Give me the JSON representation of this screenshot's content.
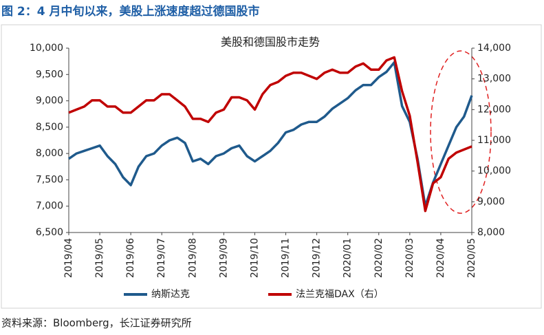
{
  "heading": "图 2：4 月中旬以来，美股上涨速度超过德国股市",
  "source": "资料来源：Bloomberg，长江证券研究所",
  "chart_data": {
    "type": "line",
    "title": "美股和德国股市走势",
    "categories": [
      "2019/04",
      null,
      null,
      null,
      "2019/05",
      null,
      null,
      null,
      "2019/06",
      null,
      null,
      null,
      "2019/07",
      null,
      null,
      null,
      "2019/08",
      null,
      null,
      null,
      "2019/09",
      null,
      null,
      null,
      "2019/10",
      null,
      null,
      null,
      "2019/11",
      null,
      null,
      null,
      "2019/12",
      null,
      null,
      null,
      "2020/01",
      null,
      null,
      null,
      "2020/02",
      null,
      null,
      null,
      "2020/03",
      null,
      null,
      null,
      "2020/04",
      null,
      null,
      null,
      "2020/05"
    ],
    "series": [
      {
        "name": "纳斯达克",
        "color": "#1f5a8c",
        "values": [
          7900,
          8000,
          8050,
          8100,
          8150,
          7950,
          7800,
          7550,
          7400,
          7750,
          7950,
          8000,
          8150,
          8250,
          8300,
          8200,
          7850,
          7900,
          7800,
          7950,
          8000,
          8100,
          8150,
          7950,
          7850,
          7950,
          8050,
          8200,
          8400,
          8450,
          8550,
          8600,
          8600,
          8700,
          8850,
          8950,
          9050,
          9200,
          9300,
          9300,
          9450,
          9550,
          9730,
          8900,
          8600,
          7900,
          7000,
          7450,
          7800,
          8150,
          8500,
          8700,
          9100
        ]
      },
      {
        "name": "法兰克福DAX（右）",
        "color": "#c00000",
        "axis": "y2",
        "values": [
          11900,
          12000,
          12100,
          12300,
          12300,
          12100,
          12100,
          11900,
          11900,
          12100,
          12300,
          12300,
          12500,
          12500,
          12300,
          12100,
          11700,
          11700,
          11600,
          11900,
          12000,
          12400,
          12400,
          12300,
          12000,
          12500,
          12800,
          12900,
          13100,
          13200,
          13200,
          13100,
          13000,
          13200,
          13300,
          13200,
          13200,
          13400,
          13500,
          13300,
          13300,
          13600,
          13700,
          12600,
          11800,
          10300,
          8700,
          9600,
          9800,
          10400,
          10600,
          10700,
          10800
        ]
      }
    ],
    "ylim": [
      6500,
      10000
    ],
    "yticks": [
      {
        "value": 6500,
        "label": "6,500"
      },
      {
        "value": 7000,
        "label": "7,000"
      },
      {
        "value": 7500,
        "label": "7,500"
      },
      {
        "value": 8000,
        "label": "8,000"
      },
      {
        "value": 8500,
        "label": "8,500"
      },
      {
        "value": 9000,
        "label": "9,000"
      },
      {
        "value": 9500,
        "label": "9,500"
      },
      {
        "value": 10000,
        "label": "10,000"
      }
    ],
    "y2lim": [
      8000,
      14000
    ],
    "y2ticks": [
      {
        "value": 8000,
        "label": "8,000"
      },
      {
        "value": 9000,
        "label": "9,000"
      },
      {
        "value": 10000,
        "label": "10,000"
      },
      {
        "value": 11000,
        "label": "11,000"
      },
      {
        "value": 12000,
        "label": "12,000"
      },
      {
        "value": 13000,
        "label": "13,000"
      },
      {
        "value": 14000,
        "label": "14,000"
      }
    ],
    "legend": "bottom"
  }
}
